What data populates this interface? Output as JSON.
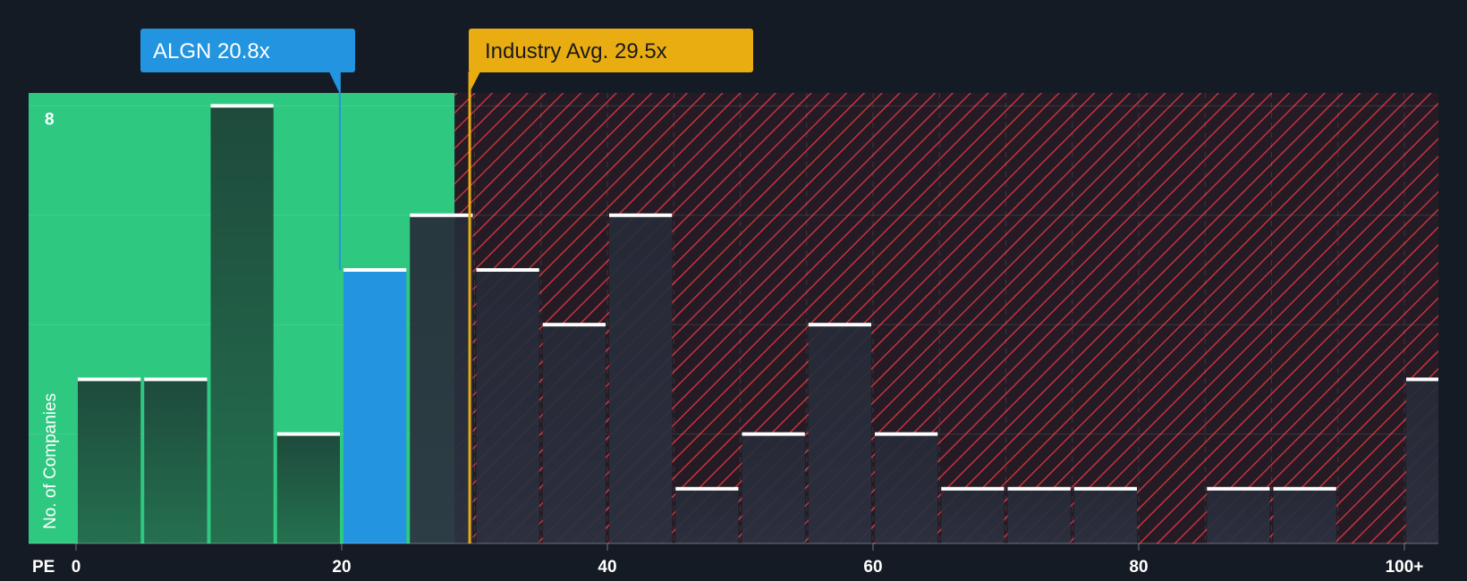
{
  "chart_data": {
    "type": "bar",
    "title": "",
    "xlabel": "PE",
    "ylabel": "No. of Companies",
    "xlim": [
      -7,
      100
    ],
    "ylim": [
      0,
      8.3
    ],
    "x_ticks": [
      {
        "value": 0,
        "label": "0"
      },
      {
        "value": 20,
        "label": "20"
      },
      {
        "value": 40,
        "label": "40"
      },
      {
        "value": 60,
        "label": "60"
      },
      {
        "value": 80,
        "label": "80"
      },
      {
        "value": 100,
        "label": "100+"
      }
    ],
    "y_ticks": [
      {
        "value": 8,
        "label": "8"
      }
    ],
    "bin_width": 5,
    "bins": [
      {
        "start": 0,
        "count": 3
      },
      {
        "start": 5,
        "count": 3
      },
      {
        "start": 10,
        "count": 8
      },
      {
        "start": 15,
        "count": 2
      },
      {
        "start": 20,
        "count": 5,
        "highlight": true
      },
      {
        "start": 25,
        "count": 6
      },
      {
        "start": 30,
        "count": 5
      },
      {
        "start": 35,
        "count": 4
      },
      {
        "start": 40,
        "count": 6
      },
      {
        "start": 45,
        "count": 1
      },
      {
        "start": 50,
        "count": 2
      },
      {
        "start": 55,
        "count": 4
      },
      {
        "start": 60,
        "count": 2
      },
      {
        "start": 65,
        "count": 1
      },
      {
        "start": 70,
        "count": 1
      },
      {
        "start": 75,
        "count": 1
      },
      {
        "start": 80,
        "count": 0
      },
      {
        "start": 85,
        "count": 1
      },
      {
        "start": 90,
        "count": 1
      },
      {
        "start": 95,
        "count": 0
      },
      {
        "start": 100,
        "count": 3
      }
    ],
    "company": {
      "label": "ALGN 20.8x",
      "value": 20.8
    },
    "industry_avg": {
      "label": "Industry Avg. 29.5x",
      "value": 29.5
    },
    "fair_zone_end": 28.5,
    "colors": {
      "background": "#151b24",
      "fair_zone": "#2ec880",
      "bar_in_zone": "#1e4a3c",
      "bar_out_zone": "#262b38",
      "bar_highlight": "#2394e0",
      "hatch": "#c4343c",
      "hatch_bg": "#241b25",
      "industry": "#e9ad12",
      "company": "#2394e0",
      "cap": "#ffffff"
    }
  }
}
